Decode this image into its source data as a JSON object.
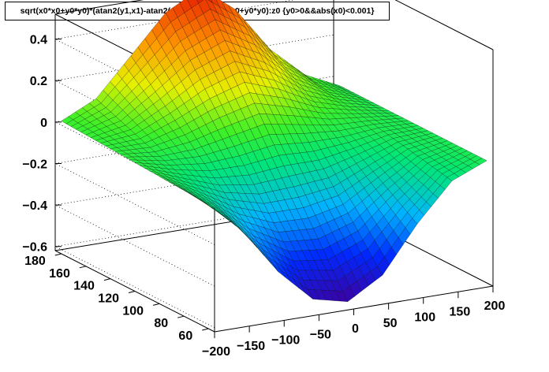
{
  "title": "sqrt(x0*x0+y0*y0)*(atan2(y1,x1)-atan2(y0,x0)):sqrt(x0*x0+y0*y0):z0 {y0>0&&abs(x0)<0.001}",
  "chart_data": {
    "type": "surface",
    "title": "sqrt(x0*x0+y0*y0)*(atan2(y1,x1)-atan2(y0,x0)):sqrt(x0*x0+y0*y0):z0 {y0>0&&abs(x0)<0.001}",
    "x_axis": {
      "ticks": [
        "-200",
        "-150",
        "-100",
        "-50",
        "0",
        "50",
        "100",
        "150",
        "200"
      ],
      "range": [
        -200,
        200
      ]
    },
    "y_axis": {
      "ticks": [
        "60",
        "80",
        "100",
        "120",
        "140",
        "160",
        "180"
      ],
      "range": [
        55,
        185
      ]
    },
    "z_axis": {
      "ticks": [
        "-0.6",
        "-0.4",
        "-0.2",
        "0",
        "0.2",
        "0.4"
      ],
      "range": [
        -0.62,
        0.52
      ]
    },
    "surface_profile": {
      "x": [
        -200,
        -150,
        -100,
        -50,
        0,
        50,
        100,
        150,
        200
      ],
      "z_near_y60": [
        -0.02,
        -0.18,
        -0.4,
        -0.56,
        -0.6,
        -0.5,
        -0.28,
        -0.1,
        -0.03
      ],
      "z_far_y180": [
        0.02,
        0.1,
        0.28,
        0.46,
        0.55,
        0.42,
        0.2,
        0.05,
        -0.03
      ]
    },
    "colormap": "rainbow",
    "grid": true
  }
}
